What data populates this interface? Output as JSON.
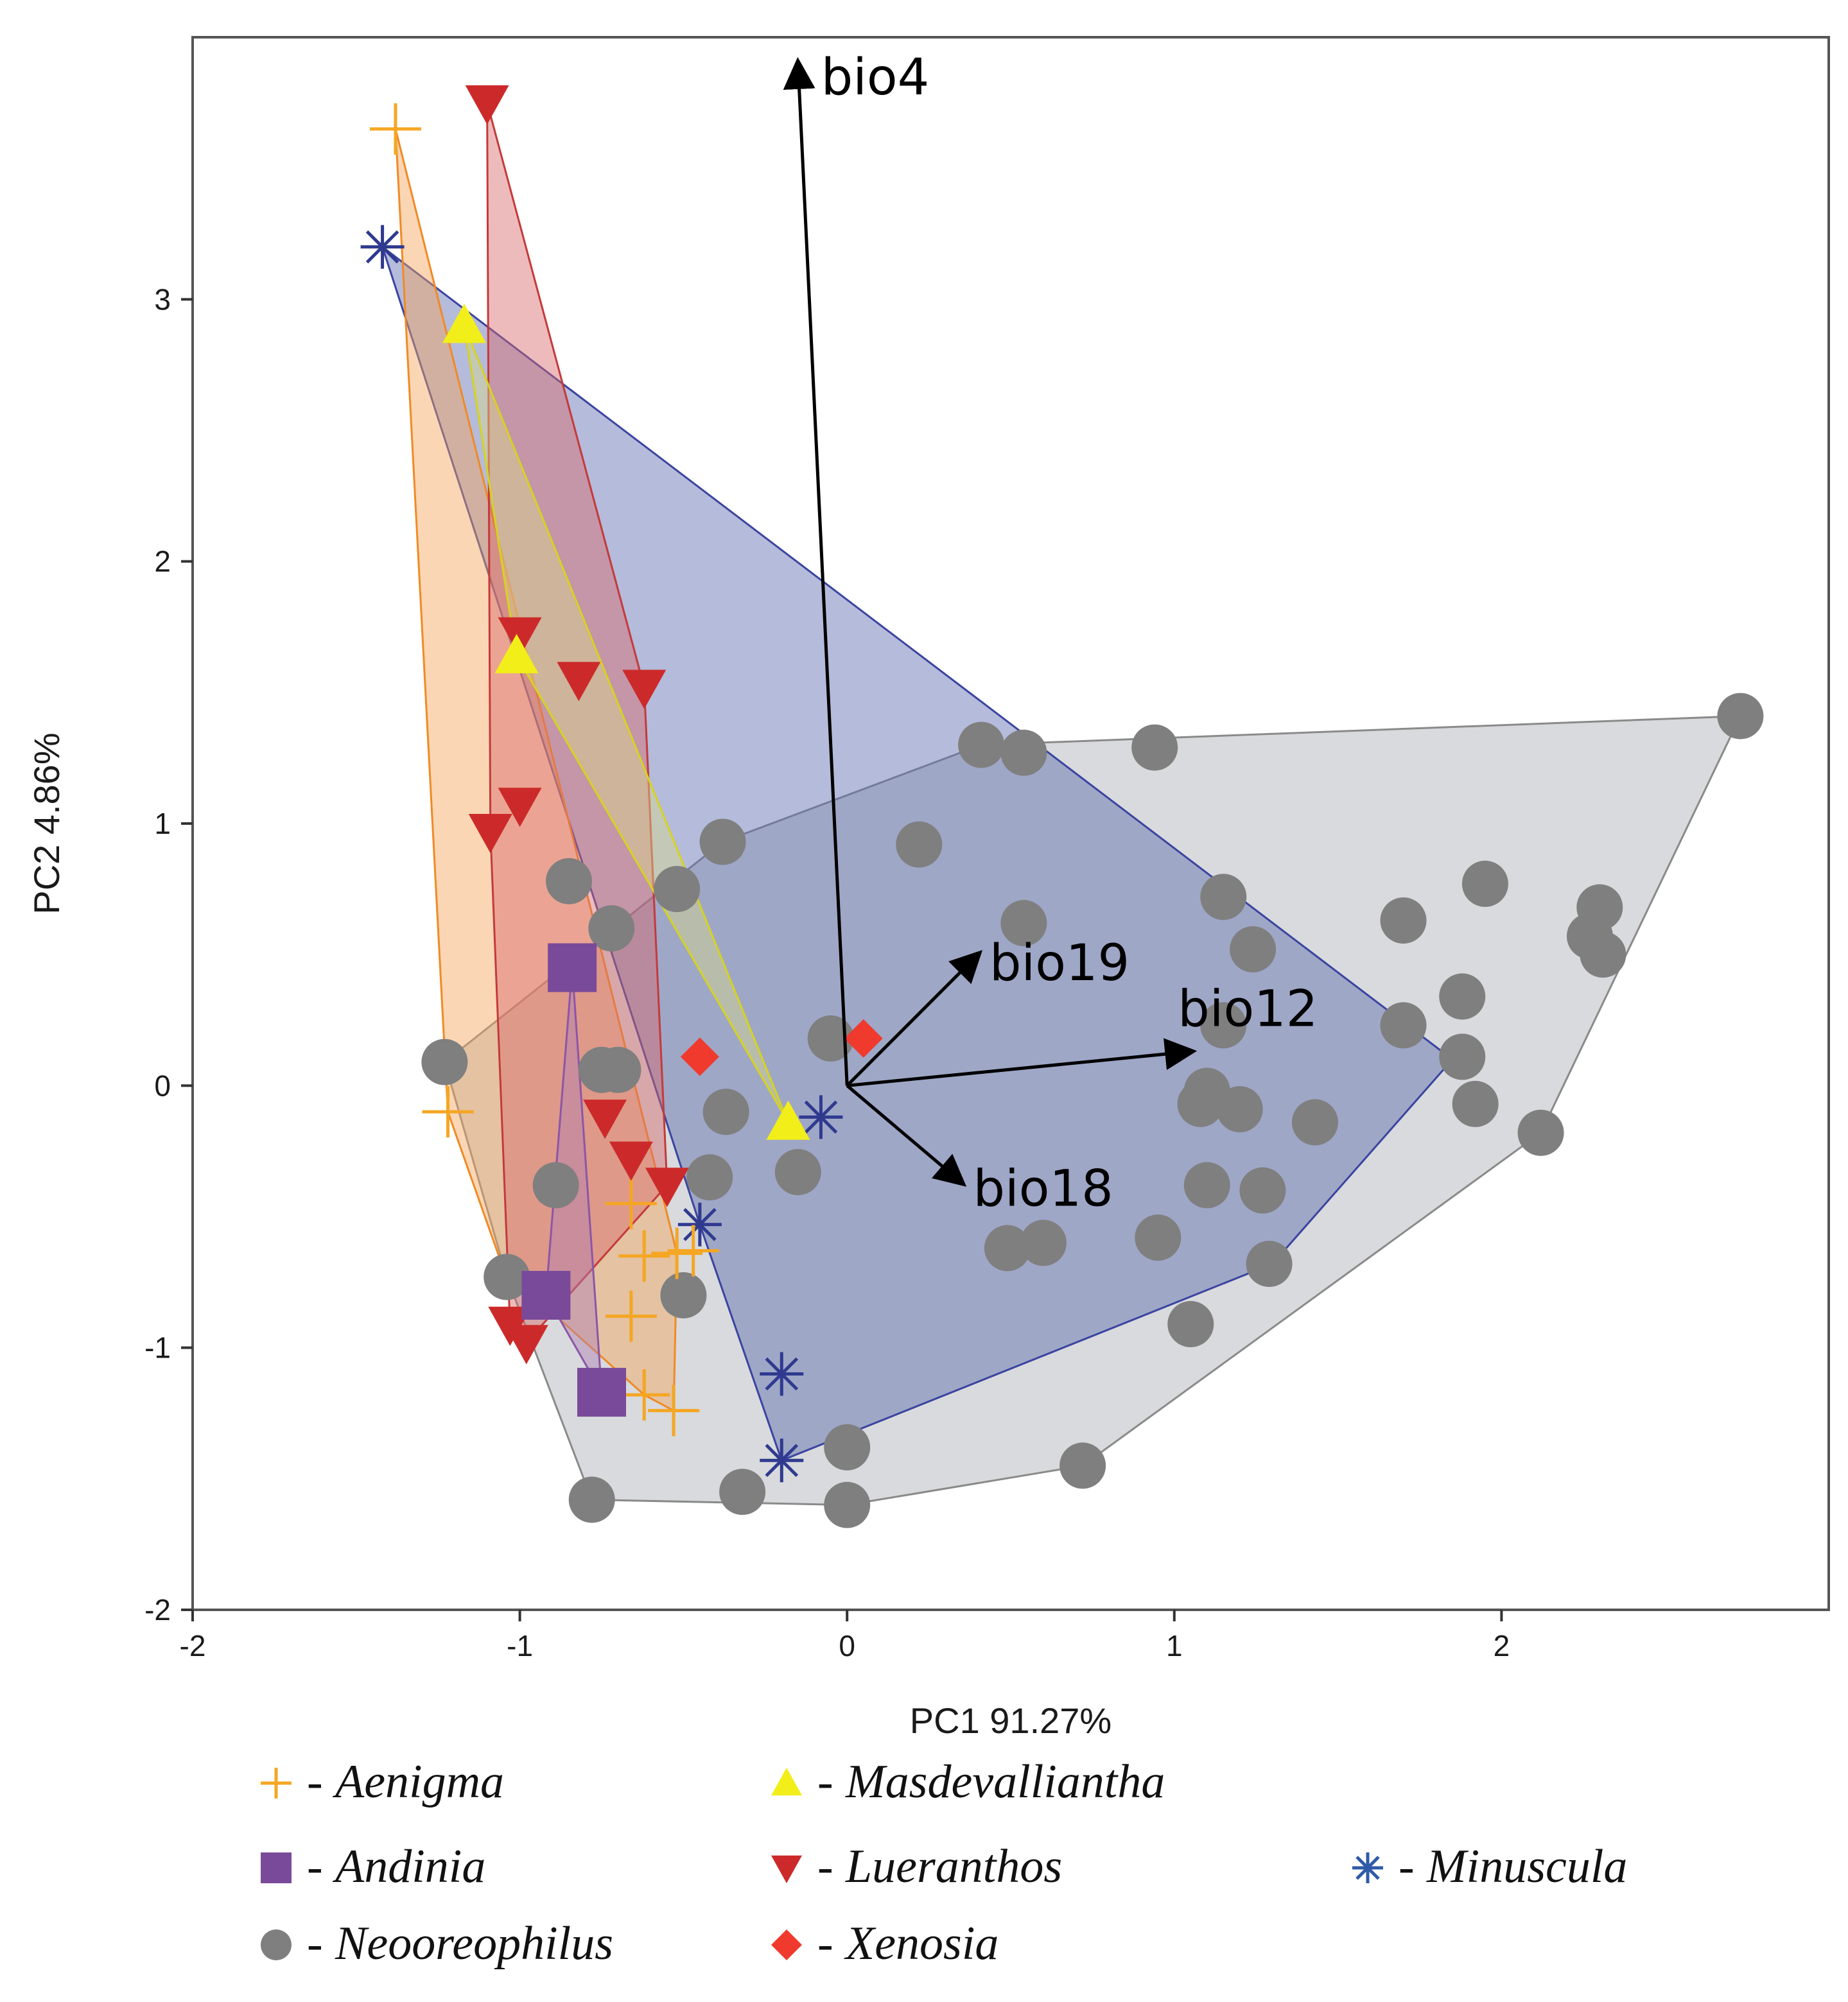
{
  "chart_data": {
    "type": "scatter",
    "title": "",
    "xlabel": "PC1 91.27%",
    "ylabel": "PC2 4.86%",
    "xlim": [
      -2,
      3.0
    ],
    "ylim": [
      -2,
      4.0
    ],
    "xticks": [
      -2,
      -1,
      0,
      1,
      2
    ],
    "yticks": [
      -2,
      -1,
      0,
      1,
      2,
      3
    ],
    "grid": false,
    "legend_position": "bottom",
    "vectors": [
      {
        "label": "bio4",
        "x": -0.15,
        "y": 3.9
      },
      {
        "label": "bio19",
        "x": 0.4,
        "y": 0.5
      },
      {
        "label": "bio12",
        "x": 1.05,
        "y": 0.13
      },
      {
        "label": "bio18",
        "x": 0.35,
        "y": -0.37
      }
    ],
    "series": [
      {
        "name": "Neooreophilus",
        "marker": "circle",
        "color": "#7f7f7f",
        "hull_fill": "#a9adb3",
        "hull_stroke": "#8a8a8a",
        "points": [
          [
            -1.23,
            0.09
          ],
          [
            -0.85,
            0.78
          ],
          [
            -0.72,
            0.6
          ],
          [
            -0.52,
            0.75
          ],
          [
            -0.38,
            0.93
          ],
          [
            -0.75,
            0.06
          ],
          [
            -0.7,
            0.06
          ],
          [
            -0.37,
            -0.1
          ],
          [
            -0.42,
            -0.35
          ],
          [
            -0.15,
            -0.33
          ],
          [
            -0.89,
            -0.38
          ],
          [
            -1.04,
            -0.73
          ],
          [
            -0.5,
            -0.8
          ],
          [
            -0.78,
            -1.58
          ],
          [
            -0.32,
            -1.55
          ],
          [
            0.0,
            -1.38
          ],
          [
            0.0,
            -1.6
          ],
          [
            0.72,
            -1.45
          ],
          [
            -0.05,
            0.18
          ],
          [
            0.22,
            0.92
          ],
          [
            0.41,
            1.3
          ],
          [
            0.54,
            1.27
          ],
          [
            0.94,
            1.29
          ],
          [
            0.54,
            0.62
          ],
          [
            1.15,
            0.72
          ],
          [
            1.24,
            0.52
          ],
          [
            1.15,
            0.23
          ],
          [
            1.1,
            -0.02
          ],
          [
            1.08,
            -0.07
          ],
          [
            1.2,
            -0.09
          ],
          [
            1.43,
            -0.14
          ],
          [
            1.1,
            -0.38
          ],
          [
            1.27,
            -0.4
          ],
          [
            0.49,
            -0.62
          ],
          [
            0.6,
            -0.6
          ],
          [
            0.95,
            -0.58
          ],
          [
            1.29,
            -0.68
          ],
          [
            1.05,
            -0.91
          ],
          [
            1.7,
            0.63
          ],
          [
            1.95,
            0.77
          ],
          [
            1.7,
            0.23
          ],
          [
            1.88,
            0.34
          ],
          [
            1.88,
            0.11
          ],
          [
            1.92,
            -0.07
          ],
          [
            2.12,
            -0.18
          ],
          [
            2.27,
            0.57
          ],
          [
            2.3,
            0.68
          ],
          [
            2.31,
            0.5
          ],
          [
            2.73,
            1.41
          ]
        ],
        "hull": [
          [
            -1.23,
            0.09
          ],
          [
            -0.38,
            0.93
          ],
          [
            0.41,
            1.3
          ],
          [
            2.73,
            1.41
          ],
          [
            2.12,
            -0.18
          ],
          [
            0.72,
            -1.45
          ],
          [
            0.0,
            -1.6
          ],
          [
            -0.78,
            -1.58
          ],
          [
            -1.04,
            -0.73
          ]
        ]
      },
      {
        "name": "Minuscula",
        "marker": "asterisk",
        "color": "#2f3a8f",
        "hull_fill": "#5c68ad",
        "hull_stroke": "#3a44a0",
        "points": [
          [
            -1.42,
            3.2
          ],
          [
            -0.08,
            -0.12
          ],
          [
            -0.45,
            -0.53
          ],
          [
            -0.2,
            -1.1
          ],
          [
            -0.2,
            -1.43
          ]
        ],
        "hull": [
          [
            -1.42,
            3.2
          ],
          [
            1.85,
            0.1
          ],
          [
            1.3,
            -0.68
          ],
          [
            -0.2,
            -1.43
          ],
          [
            -0.45,
            -0.53
          ]
        ]
      },
      {
        "name": "Aenigma",
        "marker": "plus",
        "color": "#f5a623",
        "hull_fill": "#f4a55c",
        "hull_stroke": "#f08a24",
        "points": [
          [
            -1.38,
            3.65
          ],
          [
            -1.22,
            -0.1
          ],
          [
            -0.66,
            -0.45
          ],
          [
            -0.62,
            -0.65
          ],
          [
            -0.52,
            -0.64
          ],
          [
            -0.47,
            -0.63
          ],
          [
            -0.66,
            -0.88
          ],
          [
            -0.62,
            -1.18
          ],
          [
            -0.53,
            -1.24
          ]
        ],
        "hull": [
          [
            -1.38,
            3.65
          ],
          [
            -0.52,
            -0.64
          ],
          [
            -0.53,
            -1.24
          ],
          [
            -0.62,
            -1.18
          ],
          [
            -1.05,
            -0.7
          ],
          [
            -1.22,
            -0.1
          ]
        ]
      },
      {
        "name": "Lueranthos",
        "marker": "triangle-down",
        "color": "#cc2a2a",
        "hull_fill": "#d9686b",
        "hull_stroke": "#c43a3a",
        "points": [
          [
            -1.1,
            3.75
          ],
          [
            -1.0,
            1.72
          ],
          [
            -0.82,
            1.55
          ],
          [
            -0.62,
            1.52
          ],
          [
            -1.0,
            1.07
          ],
          [
            -1.09,
            0.97
          ],
          [
            -0.74,
            -0.12
          ],
          [
            -0.66,
            -0.28
          ],
          [
            -0.55,
            -0.38
          ],
          [
            -1.03,
            -0.91
          ],
          [
            -0.98,
            -0.98
          ]
        ],
        "hull": [
          [
            -1.1,
            3.75
          ],
          [
            -0.62,
            1.52
          ],
          [
            -0.55,
            -0.38
          ],
          [
            -0.98,
            -0.98
          ],
          [
            -1.03,
            -0.91
          ],
          [
            -1.09,
            0.97
          ]
        ]
      },
      {
        "name": "Masdevalliantha",
        "marker": "triangle-up",
        "color": "#f2ee1a",
        "hull_fill": "#d8d98a",
        "hull_stroke": "#d6d320",
        "points": [
          [
            -1.17,
            2.9
          ],
          [
            -1.01,
            1.64
          ],
          [
            -0.18,
            -0.14
          ]
        ],
        "hull": [
          [
            -1.17,
            2.9
          ],
          [
            -0.18,
            -0.14
          ],
          [
            -1.01,
            1.64
          ]
        ]
      },
      {
        "name": "Andinia",
        "marker": "square",
        "color": "#7a4a9a",
        "hull_fill": "#b07fb4",
        "hull_stroke": "#8b56a8",
        "points": [
          [
            -0.84,
            0.45
          ],
          [
            -0.92,
            -0.8
          ],
          [
            -0.75,
            -1.17
          ]
        ],
        "hull": [
          [
            -0.84,
            0.45
          ],
          [
            -0.75,
            -1.17
          ],
          [
            -0.92,
            -0.8
          ]
        ]
      },
      {
        "name": "Xenosia",
        "marker": "diamond",
        "color": "#f03a2e",
        "points": [
          [
            -0.45,
            0.11
          ],
          [
            0.05,
            0.18
          ]
        ]
      }
    ]
  },
  "legend": [
    {
      "label": "Aenigma",
      "marker": "plus",
      "color": "#f5a623"
    },
    {
      "label": "Masdevalliantha",
      "marker": "triangle-up",
      "color": "#f2ee1a"
    },
    {
      "label": "Andinia",
      "marker": "square",
      "color": "#7a4a9a"
    },
    {
      "label": "Lueranthos",
      "marker": "triangle-down",
      "color": "#cc2a2a"
    },
    {
      "label": "Minuscula",
      "marker": "asterisk",
      "color": "#2f5aa8"
    },
    {
      "label": "Neooreophilus",
      "marker": "circle",
      "color": "#7f7f7f"
    },
    {
      "label": "Xenosia",
      "marker": "diamond",
      "color": "#f03a2e"
    }
  ],
  "legend_separator": "-"
}
